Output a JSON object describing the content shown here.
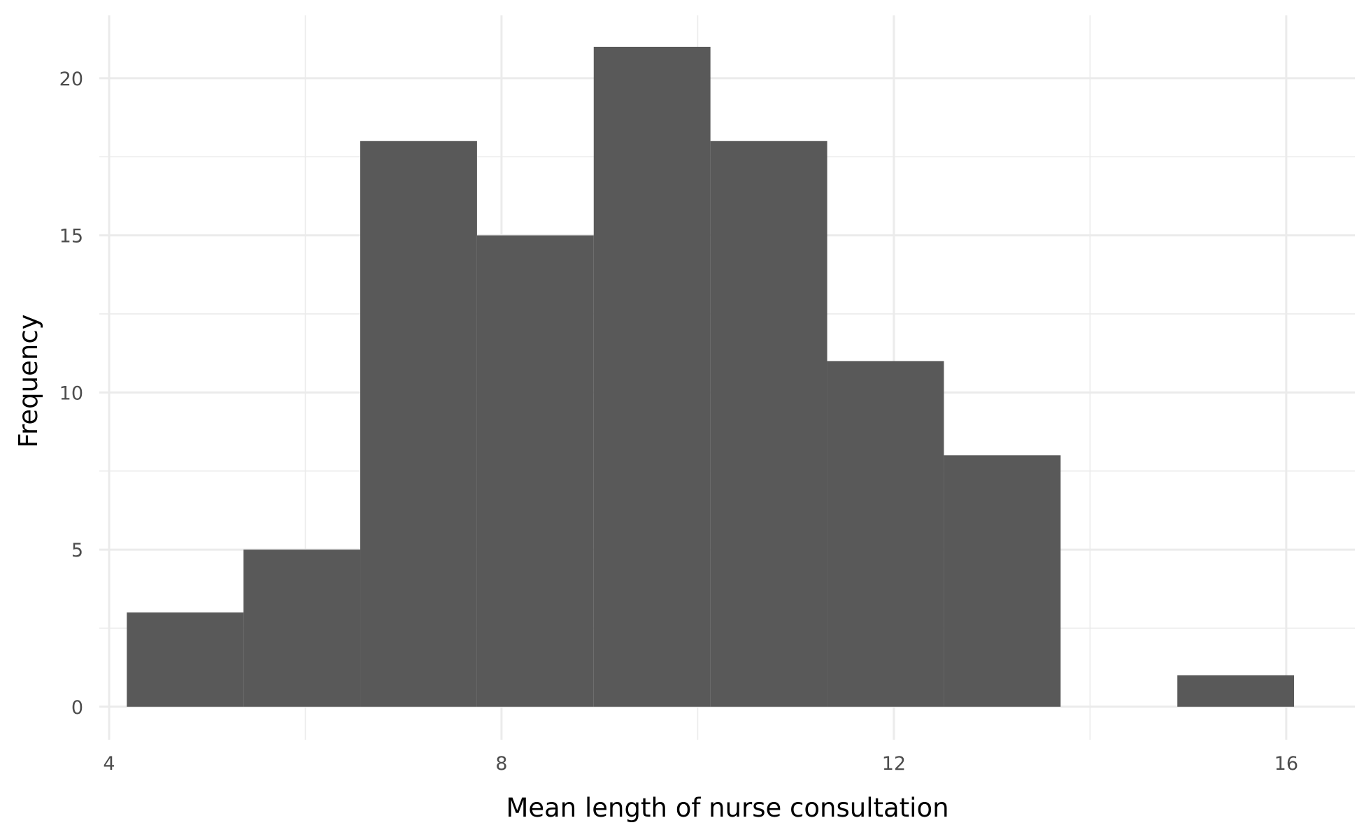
{
  "chart_data": {
    "type": "bar",
    "title": "",
    "xlabel": "Mean length of nurse consultation",
    "ylabel": "Frequency",
    "grid": true,
    "xlim": [
      3.9,
      16.7
    ],
    "ylim": [
      -1.05,
      22
    ],
    "x_ticks": [
      4,
      8,
      12,
      16
    ],
    "x_minor_ticks": [
      6,
      10,
      14
    ],
    "y_ticks": [
      0,
      5,
      10,
      15,
      20
    ],
    "y_minor_ticks": [
      2.5,
      7.5,
      12.5,
      17.5
    ],
    "bin_width": 1.19,
    "bins": [
      {
        "x0": 4.18,
        "x1": 5.37,
        "count": 3
      },
      {
        "x0": 5.37,
        "x1": 6.56,
        "count": 5
      },
      {
        "x0": 6.56,
        "x1": 7.75,
        "count": 18
      },
      {
        "x0": 7.75,
        "x1": 8.94,
        "count": 15
      },
      {
        "x0": 8.94,
        "x1": 10.13,
        "count": 21
      },
      {
        "x0": 10.13,
        "x1": 11.32,
        "count": 18
      },
      {
        "x0": 11.32,
        "x1": 12.51,
        "count": 11
      },
      {
        "x0": 12.51,
        "x1": 13.7,
        "count": 8
      },
      {
        "x0": 13.7,
        "x1": 14.89,
        "count": 0
      },
      {
        "x0": 14.89,
        "x1": 16.08,
        "count": 1
      }
    ],
    "colors": {
      "bar": "#595959",
      "grid": "#ebebeb",
      "tick_label": "#4d4d4d",
      "axis_title": "#000000",
      "background": "#ffffff"
    }
  }
}
